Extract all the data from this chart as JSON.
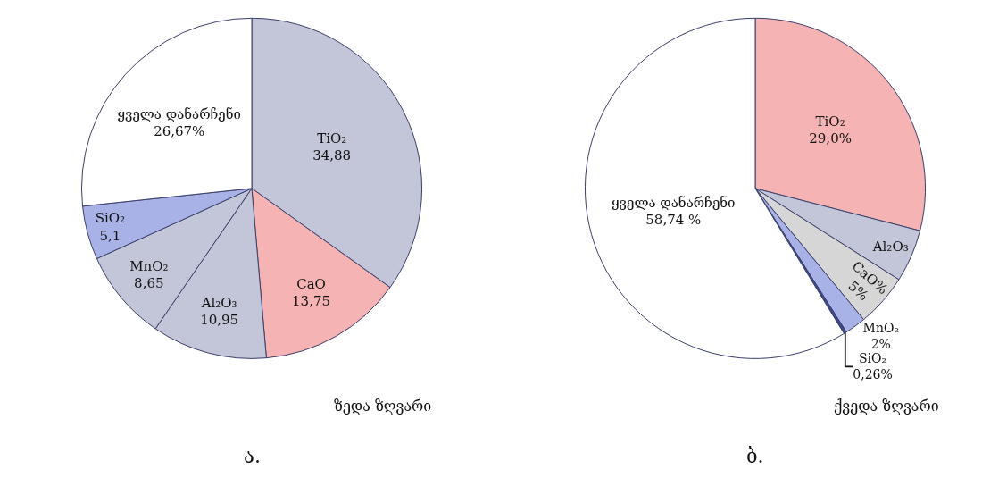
{
  "chart_data": [
    {
      "type": "pie",
      "title": "ა.",
      "categories": [
        "TiO₂",
        "CaO",
        "Al₂O₃",
        "MnO₂",
        "SiO₂",
        "ყველა დანარჩენი"
      ],
      "values": [
        34.88,
        13.75,
        10.95,
        8.65,
        5.1,
        26.67
      ],
      "value_labels": [
        "34,88",
        "13,75",
        "10,95",
        "8,65",
        "5,1",
        "26,67%"
      ],
      "colors": [
        "#c3c6d8",
        "#f5b3b3",
        "#c3c6d8",
        "#c3c6d8",
        "#a9b2e6",
        "#ffffff"
      ],
      "annotations": [
        "ზედა ზღვარი"
      ]
    },
    {
      "type": "pie",
      "title": "ბ.",
      "categories": [
        "TiO₂",
        "Al₂O₃",
        "CaO%",
        "MnO₂",
        "SiO₂",
        "ყველა დანარჩენი"
      ],
      "values": [
        29.0,
        5,
        5,
        2,
        0.26,
        58.74
      ],
      "value_labels": [
        "29,0%",
        null,
        "5%",
        "2%",
        "0,26%",
        "58,74 %"
      ],
      "colors": [
        "#f5b3b3",
        "#c3c6d8",
        "#d6d6d6",
        "#a9b2e6",
        "#3b4a8a",
        "#ffffff"
      ],
      "annotations": [
        "ქვედა ზღვარი"
      ]
    }
  ]
}
